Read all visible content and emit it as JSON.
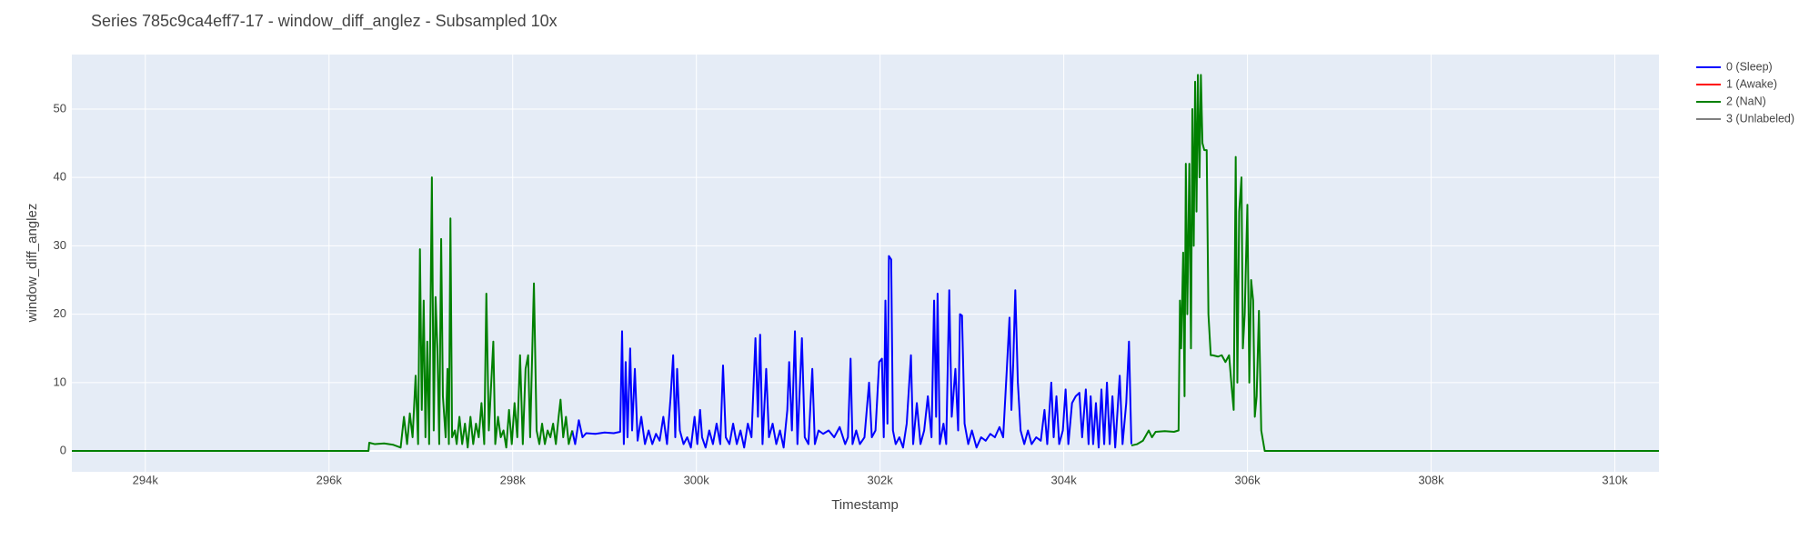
{
  "chart_data": {
    "type": "line",
    "title": "Series 785c9ca4eff7-17 - window_diff_anglez - Subsampled 10x",
    "x_label": "Timestamp",
    "y_label": "window_diff_anglez",
    "xlim": [
      293200,
      310480
    ],
    "ylim": [
      -3.05,
      57.97
    ],
    "xticks": [
      {
        "value": 294000,
        "label": "294k"
      },
      {
        "value": 296000,
        "label": "296k"
      },
      {
        "value": 298000,
        "label": "298k"
      },
      {
        "value": 300000,
        "label": "300k"
      },
      {
        "value": 302000,
        "label": "302k"
      },
      {
        "value": 304000,
        "label": "304k"
      },
      {
        "value": 306000,
        "label": "306k"
      },
      {
        "value": 308000,
        "label": "308k"
      },
      {
        "value": 310000,
        "label": "310k"
      }
    ],
    "yticks": [
      0,
      10,
      20,
      30,
      40,
      50
    ],
    "grid": true,
    "legend": "right",
    "series": [
      {
        "name": "0 (Sleep)",
        "color": "#0000ff",
        "x": [
          298648,
          298680,
          298720,
          298760,
          298800,
          298900,
          299000,
          299100,
          299170,
          299191,
          299210,
          299230,
          299250,
          299279,
          299300,
          299330,
          299360,
          299400,
          299440,
          299480,
          299520,
          299560,
          299600,
          299640,
          299680,
          299720,
          299747,
          299770,
          299790,
          299820,
          299860,
          299900,
          299940,
          299980,
          300010,
          300040,
          300062,
          300100,
          300140,
          300180,
          300220,
          300260,
          300290,
          300320,
          300360,
          300400,
          300440,
          300480,
          300520,
          300560,
          300600,
          300643,
          300670,
          300694,
          300720,
          300760,
          300790,
          300830,
          300870,
          300910,
          300950,
          300990,
          301010,
          301040,
          301073,
          301100,
          301149,
          301180,
          301220,
          301262,
          301290,
          301330,
          301380,
          301440,
          301500,
          301560,
          301620,
          301650,
          301679,
          301700,
          301740,
          301780,
          301830,
          301880,
          301910,
          301950,
          301990,
          302020,
          302040,
          302058,
          302080,
          302096,
          302121,
          302140,
          302170,
          302210,
          302250,
          302290,
          302336,
          302360,
          302400,
          302440,
          302480,
          302520,
          302560,
          302588,
          302610,
          302626,
          302650,
          302690,
          302720,
          302753,
          302780,
          302820,
          302850,
          302870,
          302892,
          302920,
          302960,
          303000,
          303050,
          303100,
          303150,
          303200,
          303250,
          303300,
          303340,
          303380,
          303409,
          303430,
          303450,
          303472,
          303500,
          303530,
          303570,
          303610,
          303650,
          303700,
          303750,
          303790,
          303820,
          303864,
          303890,
          303920,
          303950,
          303990,
          304020,
          304050,
          304090,
          304130,
          304170,
          304200,
          304240,
          304270,
          304293,
          304320,
          304350,
          304380,
          304410,
          304440,
          304470,
          304500,
          304530,
          304560,
          304609,
          304640,
          304680,
          304710,
          304736
        ],
        "values": [
          3,
          1,
          4.5,
          2,
          2.6,
          2.5,
          2.7,
          2.6,
          2.8,
          17.5,
          1,
          13,
          2,
          15,
          3,
          12,
          1.5,
          5,
          1,
          3,
          1,
          2.5,
          1.5,
          5,
          1,
          8,
          14,
          2,
          12,
          3,
          1,
          2,
          0.5,
          5,
          1,
          6,
          2,
          0.5,
          3,
          1,
          4,
          1,
          12.5,
          2,
          1,
          4,
          1,
          3,
          0.5,
          4,
          2,
          16.5,
          5,
          17,
          1,
          12,
          2,
          4,
          1,
          3,
          0.5,
          6,
          13,
          3,
          17.5,
          1,
          16.5,
          2,
          1,
          12,
          1,
          3,
          2.5,
          3,
          2,
          3.5,
          1,
          2,
          13.5,
          1,
          3,
          1,
          2,
          10,
          2,
          3,
          13,
          13.5,
          2,
          22,
          4,
          28.5,
          28,
          3,
          1,
          2,
          0.5,
          4,
          14,
          1,
          7,
          1,
          3,
          8,
          2,
          22,
          5,
          23,
          1,
          4,
          1,
          23.5,
          5,
          12,
          3,
          20,
          19.8,
          4,
          1,
          3,
          0.5,
          2,
          1.5,
          2.5,
          2,
          3.5,
          2,
          12,
          19.5,
          6,
          13,
          23.5,
          10,
          3,
          1,
          3,
          1,
          2,
          1.5,
          6,
          1,
          10,
          2,
          8,
          1,
          3,
          9,
          1,
          7,
          8,
          8.5,
          2,
          9,
          1,
          8,
          1,
          7,
          0.5,
          9,
          1,
          10,
          1,
          8,
          0.5,
          11,
          1,
          7,
          16,
          1
        ]
      },
      {
        "name": "1 (Awake)",
        "color": "#ff0000",
        "x": [],
        "values": []
      },
      {
        "name": "2 (NaN)",
        "color": "#008000",
        "x": [
          293200,
          296430,
          296438,
          296500,
          296600,
          296700,
          296780,
          296816,
          296850,
          296880,
          296910,
          296943,
          296970,
          296990,
          297010,
          297031,
          297050,
          297070,
          297090,
          297120,
          297140,
          297160,
          297180,
          297200,
          297221,
          297240,
          297270,
          297290,
          297305,
          297322,
          297340,
          297370,
          297390,
          297420,
          297450,
          297480,
          297510,
          297540,
          297570,
          297600,
          297630,
          297660,
          297690,
          297713,
          297740,
          297789,
          297810,
          297840,
          297870,
          297900,
          297930,
          297960,
          297990,
          298020,
          298050,
          298080,
          298110,
          298140,
          298168,
          298190,
          298231,
          298260,
          298290,
          298320,
          298350,
          298380,
          298410,
          298440,
          298470,
          298500,
          298521,
          298550,
          298580,
          298610,
          298648,
          301000,
          304736,
          304800,
          304862,
          304925,
          304960,
          305000,
          305100,
          305200,
          305250,
          305265,
          305278,
          305300,
          305315,
          305329,
          305345,
          305367,
          305385,
          305400,
          305415,
          305430,
          305445,
          305460,
          305478,
          305493,
          305510,
          305530,
          305556,
          305575,
          305600,
          305620,
          305680,
          305720,
          305760,
          305800,
          305830,
          305850,
          305872,
          305890,
          305910,
          305935,
          305950,
          305970,
          305999,
          306020,
          306040,
          306062,
          306080,
          306100,
          306125,
          306150,
          306188,
          310480
        ],
        "values": [
          0,
          0,
          1.2,
          1,
          1.1,
          0.9,
          0.5,
          5,
          1,
          5.5,
          2,
          11,
          1,
          29.5,
          6,
          22,
          2,
          16,
          1,
          40,
          3,
          22.5,
          15,
          1,
          31,
          8,
          2,
          12,
          1,
          34,
          2,
          3,
          1,
          5,
          1,
          4,
          0.5,
          5,
          1,
          4,
          2,
          7,
          1,
          23,
          3,
          16,
          1,
          5,
          2,
          3,
          0.5,
          6,
          1,
          7,
          2,
          14,
          1,
          12,
          14,
          2,
          24.5,
          3,
          1,
          4,
          1,
          3,
          2,
          4,
          1,
          5,
          7.5,
          2,
          5,
          1,
          3,
          null,
          0.8,
          1,
          1.5,
          3,
          2,
          2.8,
          2.9,
          2.8,
          3,
          22,
          15,
          29,
          8,
          42,
          20,
          42,
          15,
          50,
          30,
          54,
          35,
          55,
          40,
          55,
          45,
          44,
          44,
          20,
          14,
          14,
          13.8,
          14,
          13,
          14,
          9,
          6,
          43,
          10,
          35,
          40,
          15,
          20,
          36,
          10,
          25,
          22,
          5,
          8,
          20.5,
          3,
          0,
          0
        ]
      },
      {
        "name": "3 (Unlabeled)",
        "color": "#808080",
        "x": [],
        "values": []
      }
    ]
  }
}
